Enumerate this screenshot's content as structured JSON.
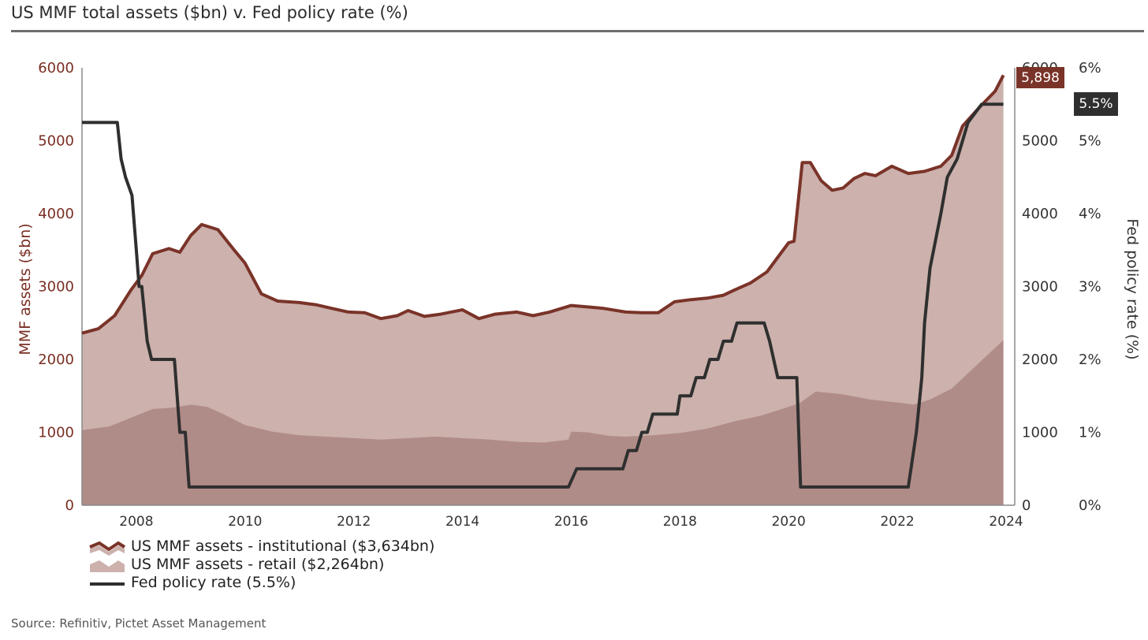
{
  "title": "US MMF total assets ($bn) v. Fed policy rate (%)",
  "source": "Source: Refinitiv, Pictet Asset Management",
  "colors": {
    "institutional_line": "#7a3328",
    "total_area": "#ccb1ad",
    "retail_area": "#b08c88",
    "fed_line": "#2f2f2f",
    "left_axis_text": "#7a2e22"
  },
  "chart_data": {
    "type": "area",
    "title": "US MMF total assets ($bn) v. Fed policy rate (%)",
    "ylabel": "MMF assets ($bn)",
    "y2label": "Fed policy rate (%)",
    "ylim": [
      0,
      6000
    ],
    "y2lim": [
      0,
      6
    ],
    "xlim": [
      2007.0,
      2024.0
    ],
    "x_ticks": [
      "2008",
      "2010",
      "2012",
      "2014",
      "2016",
      "2018",
      "2020",
      "2022",
      "2024"
    ],
    "y_ticks_left": [
      "0",
      "1000",
      "2000",
      "3000",
      "4000",
      "5000",
      "6000"
    ],
    "y_ticks_inner_right": [
      "0",
      "1000",
      "2000",
      "3000",
      "4000",
      "5000",
      "6000"
    ],
    "y_ticks_right": [
      "0%",
      "1%",
      "2%",
      "3%",
      "4%",
      "5%",
      "6%"
    ],
    "legend_position": "bottom-left",
    "grid": false,
    "end_labels": {
      "total": "5,898",
      "fed": "5.5%"
    },
    "series": [
      {
        "name": "US MMF assets - institutional ($3,634bn)",
        "kind": "line-with-area",
        "x": [
          2007.0,
          2007.3,
          2007.6,
          2007.9,
          2008.1,
          2008.3,
          2008.6,
          2008.8,
          2009.0,
          2009.2,
          2009.5,
          2009.8,
          2010.0,
          2010.3,
          2010.6,
          2011.0,
          2011.3,
          2011.6,
          2011.9,
          2012.2,
          2012.5,
          2012.8,
          2013.0,
          2013.3,
          2013.6,
          2014.0,
          2014.3,
          2014.6,
          2015.0,
          2015.3,
          2015.6,
          2016.0,
          2016.3,
          2016.6,
          2017.0,
          2017.3,
          2017.6,
          2017.9,
          2018.2,
          2018.5,
          2018.8,
          2019.0,
          2019.3,
          2019.6,
          2019.8,
          2020.0,
          2020.1,
          2020.25,
          2020.4,
          2020.6,
          2020.8,
          2021.0,
          2021.2,
          2021.4,
          2021.6,
          2021.9,
          2022.2,
          2022.5,
          2022.8,
          2023.0,
          2023.2,
          2023.5,
          2023.8,
          2023.95
        ],
        "values": [
          2360,
          2420,
          2600,
          2950,
          3150,
          3450,
          3520,
          3470,
          3700,
          3850,
          3780,
          3500,
          3320,
          2900,
          2800,
          2780,
          2750,
          2700,
          2650,
          2640,
          2560,
          2600,
          2670,
          2590,
          2620,
          2680,
          2560,
          2620,
          2650,
          2600,
          2650,
          2740,
          2720,
          2700,
          2650,
          2640,
          2640,
          2790,
          2820,
          2840,
          2880,
          2950,
          3050,
          3200,
          3400,
          3600,
          3620,
          4700,
          4700,
          4450,
          4320,
          4350,
          4480,
          4550,
          4520,
          4650,
          4550,
          4580,
          4650,
          4800,
          5200,
          5450,
          5680,
          5898
        ]
      },
      {
        "name": "US MMF assets - retail ($2,264bn)",
        "kind": "area",
        "x": [
          2007.0,
          2007.5,
          2008.0,
          2008.3,
          2008.7,
          2009.0,
          2009.3,
          2009.6,
          2010.0,
          2010.5,
          2011.0,
          2011.5,
          2012.0,
          2012.5,
          2013.0,
          2013.5,
          2014.0,
          2014.5,
          2015.0,
          2015.5,
          2015.95,
          2016.0,
          2016.3,
          2016.7,
          2017.0,
          2017.5,
          2018.0,
          2018.5,
          2019.0,
          2019.5,
          2020.0,
          2020.2,
          2020.5,
          2021.0,
          2021.5,
          2022.0,
          2022.3,
          2022.6,
          2023.0,
          2023.5,
          2023.95
        ],
        "values": [
          1030,
          1080,
          1230,
          1320,
          1340,
          1380,
          1350,
          1250,
          1100,
          1010,
          960,
          940,
          920,
          900,
          920,
          940,
          920,
          900,
          870,
          860,
          900,
          1010,
          1000,
          950,
          940,
          960,
          990,
          1050,
          1150,
          1230,
          1350,
          1400,
          1560,
          1520,
          1450,
          1410,
          1380,
          1450,
          1600,
          1950,
          2264
        ]
      },
      {
        "name": "Fed policy rate (5.5%)",
        "kind": "line",
        "axis": "right",
        "x": [
          2007.0,
          2007.65,
          2007.72,
          2007.8,
          2007.92,
          2008.0,
          2008.05,
          2008.1,
          2008.2,
          2008.28,
          2008.32,
          2008.7,
          2008.8,
          2008.9,
          2008.97,
          2015.95,
          2016.1,
          2016.95,
          2017.05,
          2017.2,
          2017.3,
          2017.4,
          2017.5,
          2017.95,
          2018.0,
          2018.2,
          2018.3,
          2018.45,
          2018.55,
          2018.7,
          2018.8,
          2018.95,
          2019.05,
          2019.55,
          2019.65,
          2019.8,
          2020.15,
          2020.22,
          2022.2,
          2022.25,
          2022.35,
          2022.45,
          2022.5,
          2022.6,
          2022.8,
          2022.92,
          2023.1,
          2023.3,
          2023.55,
          2023.95
        ],
        "values": [
          5.25,
          5.25,
          4.75,
          4.5,
          4.25,
          3.5,
          3.0,
          3.0,
          2.25,
          2.0,
          2.0,
          2.0,
          1.0,
          1.0,
          0.25,
          0.25,
          0.5,
          0.5,
          0.75,
          0.75,
          1.0,
          1.0,
          1.25,
          1.25,
          1.5,
          1.5,
          1.75,
          1.75,
          2.0,
          2.0,
          2.25,
          2.25,
          2.5,
          2.5,
          2.25,
          1.75,
          1.75,
          0.25,
          0.25,
          0.5,
          1.0,
          1.75,
          2.5,
          3.25,
          4.0,
          4.5,
          4.75,
          5.25,
          5.5,
          5.5
        ]
      }
    ]
  }
}
